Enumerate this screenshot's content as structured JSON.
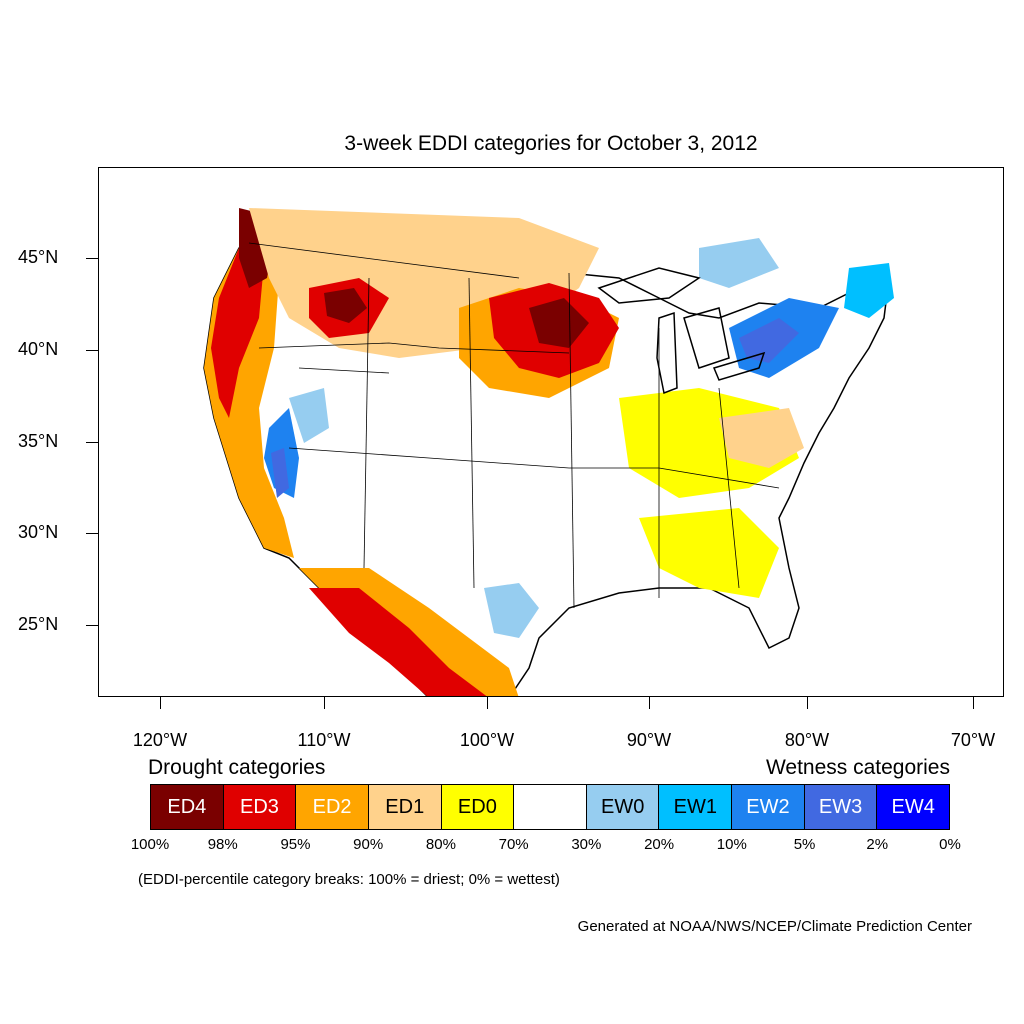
{
  "title": "3-week EDDI categories for October 3, 2012",
  "latitude_labels": [
    "45°N",
    "40°N",
    "35°N",
    "30°N",
    "25°N"
  ],
  "longitude_labels": [
    "120°W",
    "110°W",
    "100°W",
    "90°W",
    "80°W",
    "70°W"
  ],
  "legend": {
    "drought_heading": "Drought categories",
    "wetness_heading": "Wetness categories",
    "categories": [
      {
        "label": "ED4",
        "color": "#7a0000",
        "text_color": "#ffffff"
      },
      {
        "label": "ED3",
        "color": "#e00000",
        "text_color": "#ffffff"
      },
      {
        "label": "ED2",
        "color": "#ffa500",
        "text_color": "#ffffff"
      },
      {
        "label": "ED1",
        "color": "#ffd28c",
        "text_color": "#000000"
      },
      {
        "label": "ED0",
        "color": "#ffff00",
        "text_color": "#000000"
      },
      {
        "label": "",
        "color": "#ffffff",
        "text_color": "#000000"
      },
      {
        "label": "EW0",
        "color": "#96cdf0",
        "text_color": "#000000"
      },
      {
        "label": "EW1",
        "color": "#00bfff",
        "text_color": "#000000"
      },
      {
        "label": "EW2",
        "color": "#1e82f0",
        "text_color": "#ffffff"
      },
      {
        "label": "EW3",
        "color": "#4169e1",
        "text_color": "#ffffff"
      },
      {
        "label": "EW4",
        "color": "#0000ff",
        "text_color": "#ffffff"
      }
    ],
    "percentile_breaks": [
      "100%",
      "98%",
      "95%",
      "90%",
      "80%",
      "70%",
      "30%",
      "20%",
      "10%",
      "5%",
      "2%",
      "0%"
    ]
  },
  "note": "(EDDI-percentile category breaks: 100% = driest; 0% = wettest)",
  "credit": "Generated at NOAA/NWS/NCEP/Climate Prediction Center"
}
